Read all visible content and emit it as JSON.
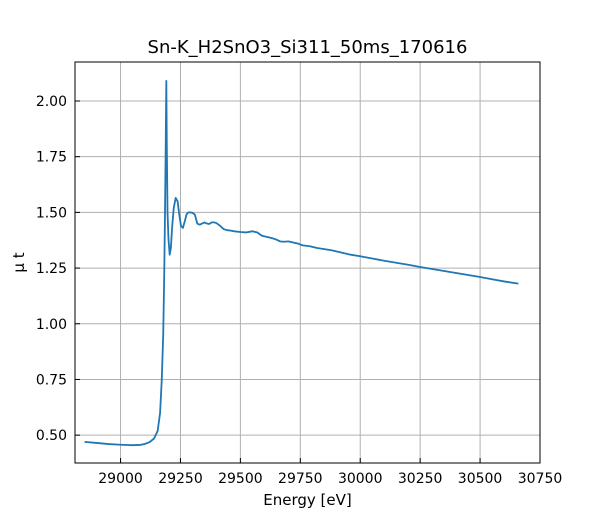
{
  "chart_data": {
    "type": "line",
    "title": "Sn-K_H2SnO3_Si311_50ms_170616",
    "xlabel": "Energy [eV]",
    "ylabel": "μ t",
    "xlim": [
      28810,
      30750
    ],
    "ylim": [
      0.375,
      2.175
    ],
    "xticks": [
      29000,
      29250,
      29500,
      29750,
      30000,
      30250,
      30500,
      30750
    ],
    "yticks": [
      0.5,
      0.75,
      1.0,
      1.25,
      1.5,
      1.75,
      2.0
    ],
    "xtick_labels": [
      "29000",
      "29250",
      "29500",
      "29750",
      "30000",
      "30250",
      "30500",
      "30750"
    ],
    "ytick_labels": [
      "0.50",
      "0.75",
      "1.00",
      "1.25",
      "1.50",
      "1.75",
      "2.00"
    ],
    "grid": true,
    "series": [
      {
        "color": "#1f77b4",
        "x": [
          28850,
          28900,
          28950,
          29000,
          29050,
          29080,
          29100,
          29120,
          29140,
          29155,
          29165,
          29172,
          29178,
          29182,
          29185,
          29188,
          29191,
          29193,
          29196,
          29200,
          29205,
          29210,
          29215,
          29222,
          29230,
          29238,
          29245,
          29252,
          29260,
          29268,
          29275,
          29283,
          29290,
          29300,
          29310,
          29320,
          29330,
          29340,
          29350,
          29360,
          29370,
          29380,
          29390,
          29400,
          29415,
          29430,
          29445,
          29460,
          29475,
          29500,
          29525,
          29550,
          29570,
          29590,
          29610,
          29630,
          29650,
          29665,
          29680,
          29700,
          29720,
          29740,
          29760,
          29790,
          29820,
          29850,
          29880,
          29920,
          29960,
          30000,
          30050,
          30100,
          30150,
          30200,
          30250,
          30300,
          30350,
          30400,
          30450,
          30500,
          30550,
          30600,
          30660
        ],
        "y": [
          0.47,
          0.465,
          0.46,
          0.457,
          0.455,
          0.456,
          0.46,
          0.468,
          0.485,
          0.52,
          0.6,
          0.75,
          0.95,
          1.2,
          1.45,
          1.75,
          2.09,
          1.8,
          1.5,
          1.38,
          1.31,
          1.34,
          1.43,
          1.52,
          1.565,
          1.55,
          1.49,
          1.44,
          1.43,
          1.46,
          1.49,
          1.5,
          1.5,
          1.498,
          1.49,
          1.45,
          1.445,
          1.45,
          1.455,
          1.45,
          1.448,
          1.455,
          1.455,
          1.452,
          1.44,
          1.425,
          1.42,
          1.418,
          1.415,
          1.412,
          1.41,
          1.415,
          1.41,
          1.395,
          1.39,
          1.385,
          1.378,
          1.37,
          1.368,
          1.37,
          1.365,
          1.36,
          1.352,
          1.348,
          1.34,
          1.335,
          1.33,
          1.32,
          1.31,
          1.303,
          1.293,
          1.283,
          1.274,
          1.265,
          1.255,
          1.246,
          1.237,
          1.228,
          1.219,
          1.21,
          1.2,
          1.19,
          1.18
        ]
      }
    ]
  }
}
